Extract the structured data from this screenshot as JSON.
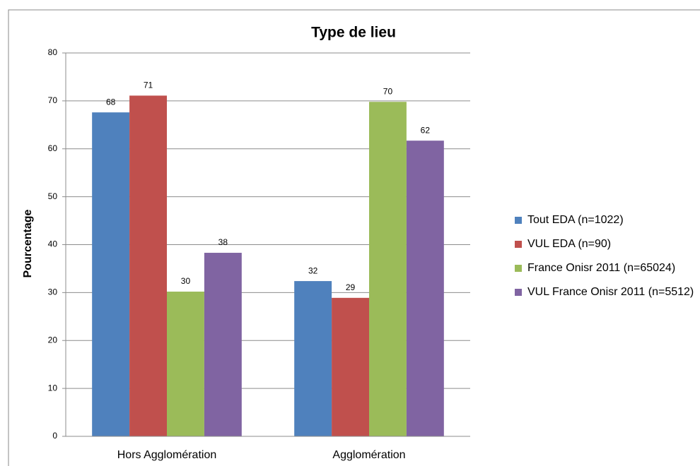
{
  "chart_data": {
    "type": "bar",
    "title": "Type de lieu",
    "ylabel": "Pourcentage",
    "categories": [
      "Hors Agglomération",
      "Agglomération"
    ],
    "series": [
      {
        "name": "Tout EDA (n=1022)",
        "color": "#4f81bd",
        "values": [
          67.6,
          32.4
        ],
        "value_labels": [
          "68",
          "32"
        ]
      },
      {
        "name": "VUL EDA (n=90)",
        "color": "#c0504d",
        "values": [
          71.1,
          28.9
        ],
        "value_labels": [
          "71",
          "29"
        ]
      },
      {
        "name": "France Onisr 2011 (n=65024)",
        "color": "#9bbb59",
        "values": [
          30.2,
          69.8
        ],
        "value_labels": [
          "30",
          "70"
        ]
      },
      {
        "name": "VUL France Onisr 2011 (n=5512)",
        "color": "#8064a2",
        "values": [
          38.3,
          61.7
        ],
        "value_labels": [
          "38",
          "62"
        ]
      }
    ],
    "ylim": [
      0,
      80
    ],
    "yticks": [
      0,
      10,
      20,
      30,
      40,
      50,
      60,
      70,
      80
    ],
    "grid": true,
    "legend": "right"
  }
}
